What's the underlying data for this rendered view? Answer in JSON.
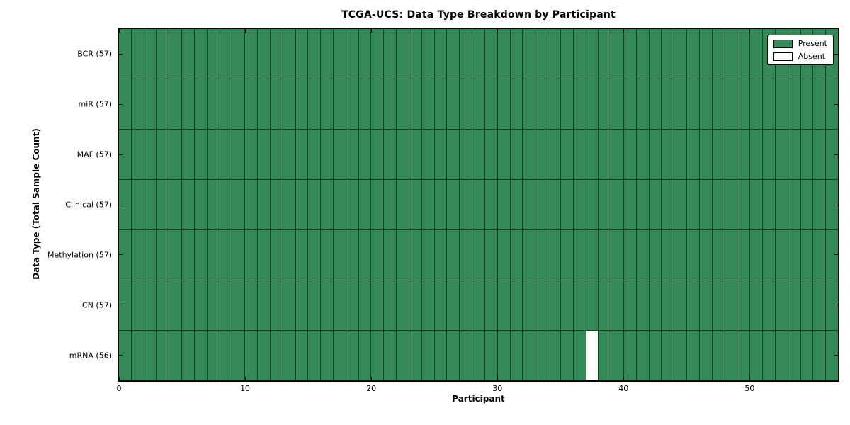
{
  "title": "TCGA-UCS: Data Type Breakdown by Participant",
  "chart_data": {
    "type": "heatmap",
    "title": "TCGA-UCS: Data Type Breakdown by Participant",
    "xlabel": "Participant",
    "ylabel": "Data Type (Total Sample Count)",
    "x_ticks": [
      0,
      10,
      20,
      30,
      40,
      50
    ],
    "xlim": [
      0,
      57
    ],
    "n_participants": 57,
    "rows": [
      {
        "label": "BCR (57)",
        "data_type": "BCR",
        "present_count": 57,
        "absent_participants": []
      },
      {
        "label": "miR (57)",
        "data_type": "miR",
        "present_count": 57,
        "absent_participants": []
      },
      {
        "label": "MAF (57)",
        "data_type": "MAF",
        "present_count": 57,
        "absent_participants": []
      },
      {
        "label": "Clinical (57)",
        "data_type": "Clinical",
        "present_count": 57,
        "absent_participants": []
      },
      {
        "label": "Methylation (57)",
        "data_type": "Methylation",
        "present_count": 57,
        "absent_participants": []
      },
      {
        "label": "CN (57)",
        "data_type": "CN",
        "present_count": 57,
        "absent_participants": []
      },
      {
        "label": "mRNA (56)",
        "data_type": "mRNA",
        "present_count": 56,
        "absent_participants": [
          37
        ]
      }
    ],
    "legend": [
      {
        "label": "Present",
        "color": "#338a57"
      },
      {
        "label": "Absent",
        "color": "#ffffff"
      }
    ],
    "legend_position": "upper right",
    "colors": {
      "present": "#338a57",
      "absent": "#ffffff",
      "cell_edge": "#17402a",
      "frame": "#000000",
      "background": "#ffffff"
    },
    "grid": "cell borders on"
  }
}
